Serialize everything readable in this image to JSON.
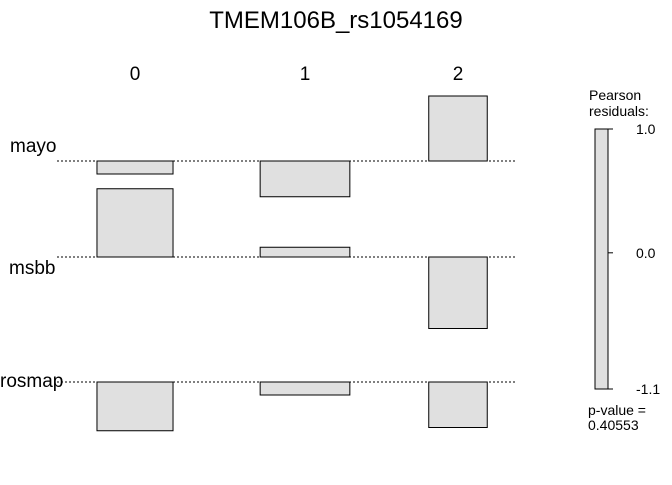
{
  "chart_data": {
    "type": "association",
    "title": "TMEM106B_rs1054169",
    "columns": [
      "0",
      "1",
      "2"
    ],
    "rows": [
      "mayo",
      "msbb",
      "rosmap"
    ],
    "residuals": [
      [
        -0.2,
        -0.55,
        1.0
      ],
      [
        1.05,
        0.15,
        -1.1
      ],
      [
        -0.75,
        -0.2,
        -0.7
      ]
    ],
    "column_widths": [
      0.39,
      0.46,
      0.3
    ],
    "legend": {
      "title_line1": "Pearson",
      "title_line2": "residuals:",
      "ticks": [
        "1.0",
        "0.0",
        "-1.1"
      ],
      "tick_values": [
        1.0,
        0.0,
        -1.1
      ],
      "pvalue_label": "p-value =",
      "pvalue": "0.40553"
    },
    "fill_color": "#e0e0e0"
  }
}
